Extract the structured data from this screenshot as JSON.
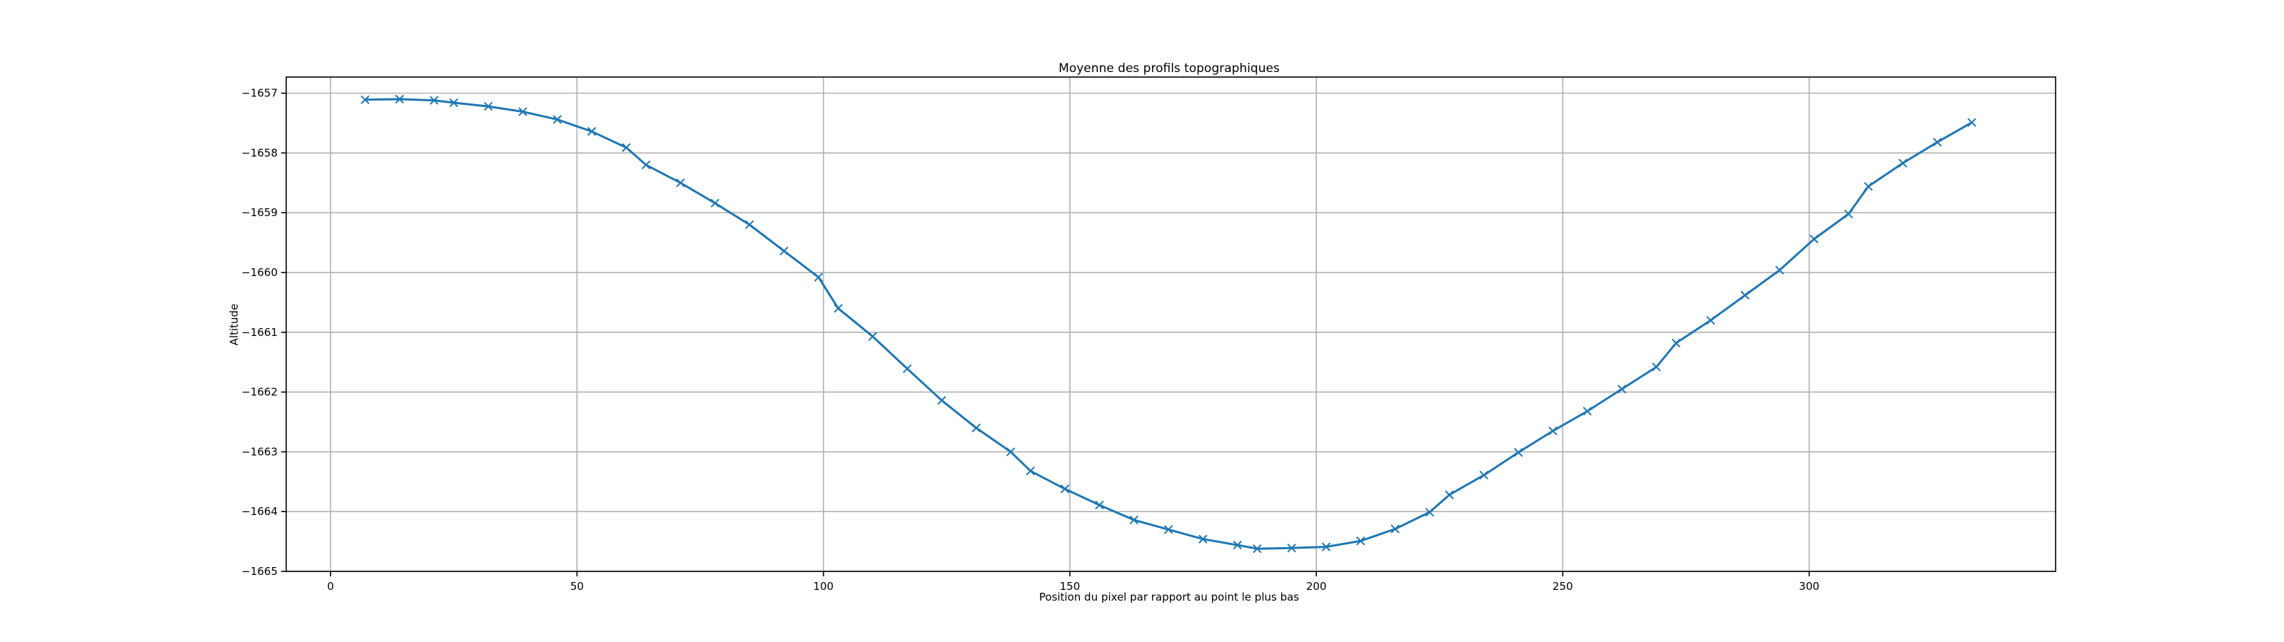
{
  "chart_data": {
    "type": "line",
    "title": "Moyenne des profils topographiques",
    "xlabel": "Position du pixel par rapport au point le plus bas",
    "ylabel": "Altitude",
    "xlim": [
      -9,
      350
    ],
    "ylim": [
      -1665,
      -1656.73
    ],
    "xticks": [
      0,
      50,
      100,
      150,
      200,
      250,
      300
    ],
    "yticks": [
      -1665,
      -1664,
      -1663,
      -1662,
      -1661,
      -1660,
      -1659,
      -1658,
      -1657
    ],
    "xtick_labels": [
      "0",
      "50",
      "100",
      "150",
      "200",
      "250",
      "300"
    ],
    "ytick_labels": [
      "−1665",
      "−1664",
      "−1663",
      "−1662",
      "−1661",
      "−1660",
      "−1659",
      "−1658",
      "−1657"
    ],
    "grid": true,
    "marker": "x",
    "color": "#1f77b4",
    "x": [
      7,
      14,
      21,
      25,
      32,
      39,
      46,
      53,
      60,
      64,
      71,
      78,
      85,
      92,
      99,
      103,
      110,
      117,
      124,
      131,
      138,
      142,
      149,
      156,
      163,
      170,
      177,
      184,
      188,
      195,
      202,
      209,
      216,
      223,
      227,
      234,
      241,
      248,
      255,
      262,
      269,
      273,
      280,
      287,
      294,
      301,
      308,
      312,
      319,
      326,
      333
    ],
    "y": [
      -1657.11,
      -1657.1,
      -1657.12,
      -1657.16,
      -1657.22,
      -1657.31,
      -1657.44,
      -1657.64,
      -1657.91,
      -1658.2,
      -1658.5,
      -1658.84,
      -1659.2,
      -1659.64,
      -1660.08,
      -1660.6,
      -1661.07,
      -1661.61,
      -1662.14,
      -1662.6,
      -1663.0,
      -1663.32,
      -1663.62,
      -1663.89,
      -1664.14,
      -1664.3,
      -1664.46,
      -1664.56,
      -1664.62,
      -1664.61,
      -1664.59,
      -1664.49,
      -1664.29,
      -1664.01,
      -1663.72,
      -1663.39,
      -1663.01,
      -1662.65,
      -1662.32,
      -1661.95,
      -1661.58,
      -1661.18,
      -1660.8,
      -1660.38,
      -1659.96,
      -1659.44,
      -1659.02,
      -1658.56,
      -1658.17,
      -1657.82,
      -1657.49
    ]
  }
}
